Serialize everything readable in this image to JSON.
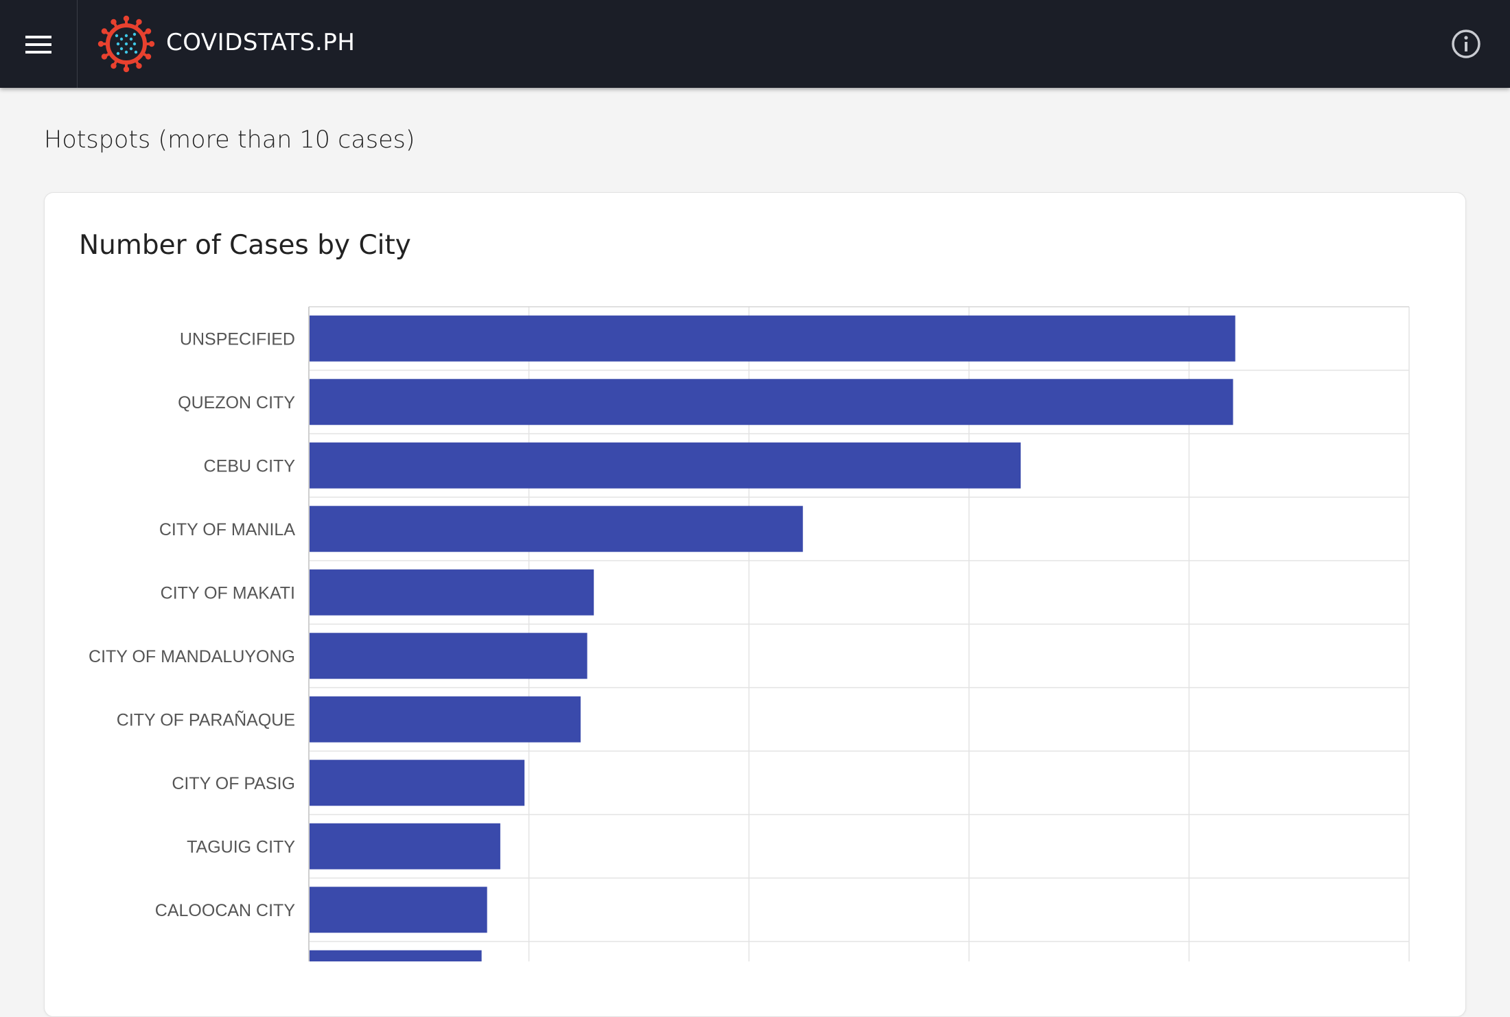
{
  "app": {
    "brand": "COVIDSTATS.PH",
    "menu_icon": "hamburger-menu-icon",
    "info_icon": "info-icon",
    "logo_icon": "virus-logo-icon"
  },
  "section": {
    "title": "Hotspots (more than 10 cases)"
  },
  "card": {
    "title": "Number of Cases by City"
  },
  "colors": {
    "topbar": "#1b1e27",
    "bar": "#3a4aab",
    "logo_red": "#e8412f",
    "logo_dots": "#3fc7e6"
  },
  "chart_data": {
    "type": "bar",
    "orientation": "horizontal",
    "title": "Number of Cases by City",
    "categories": [
      "UNSPECIFIED",
      "QUEZON CITY",
      "CEBU CITY",
      "CITY OF MANILA",
      "CITY OF MAKATI",
      "CITY OF MANDALUYONG",
      "CITY OF PARAÑAQUE",
      "CITY OF PASIG",
      "TAGUIG CITY",
      "CALOOCAN CITY",
      ""
    ],
    "values": [
      4210,
      4200,
      3235,
      2245,
      1295,
      1265,
      1235,
      980,
      870,
      810,
      785
    ],
    "xlim": [
      0,
      5000
    ],
    "grid": true,
    "legend": "none"
  }
}
